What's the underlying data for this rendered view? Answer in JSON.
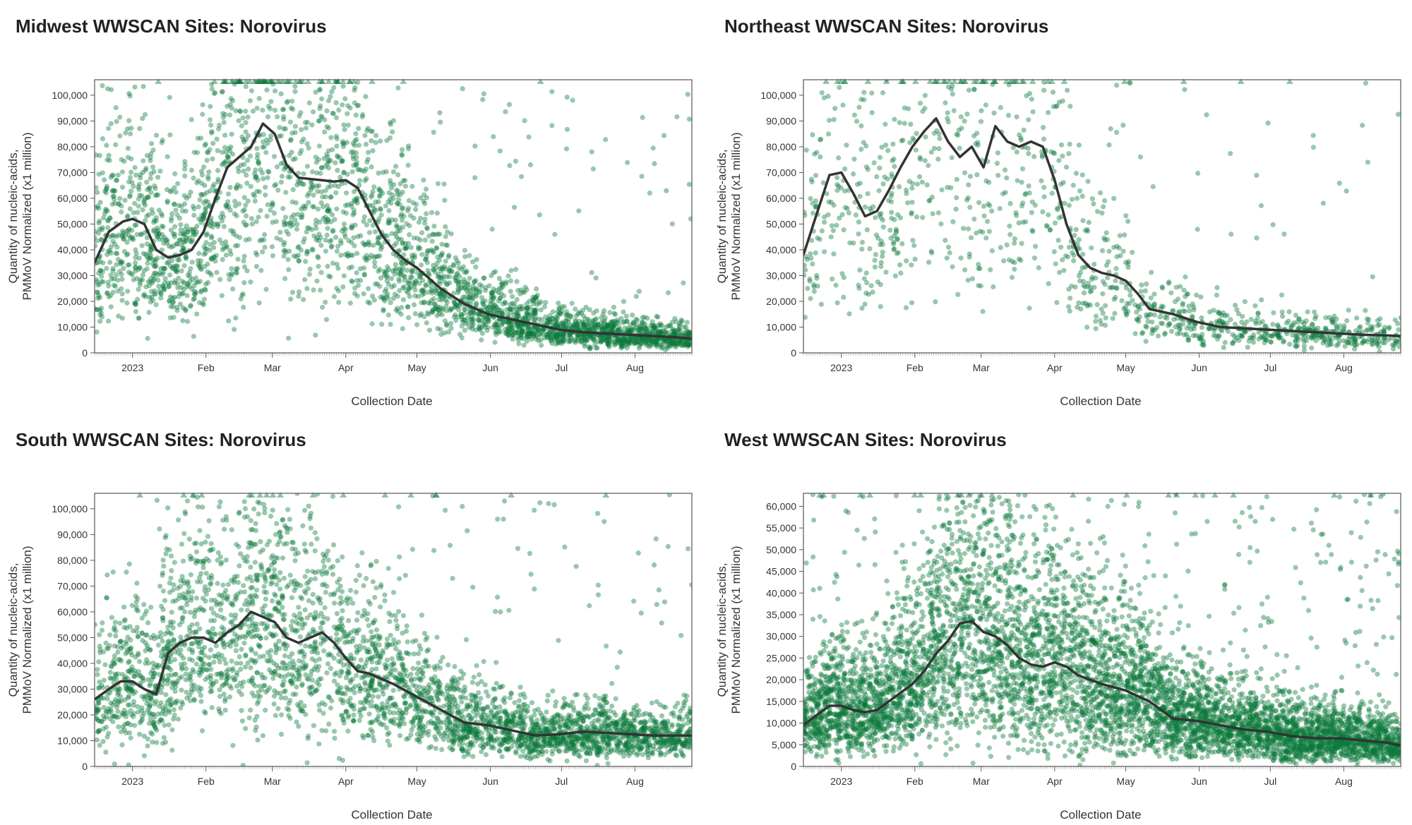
{
  "colors": {
    "points": "#0b7a3b",
    "trend": "#333333",
    "frame": "#555555"
  },
  "chart_data": [
    {
      "type": "scatter",
      "title": "Midwest WWSCAN Sites: Norovirus",
      "xlabel": "Collection Date",
      "ylabel_lines": [
        "Quantity of nucleic-acids,",
        "PMMoV Normalized (x1 million)"
      ],
      "ylim": [
        0,
        106000
      ],
      "yticks": [
        0,
        10000,
        20000,
        30000,
        40000,
        50000,
        60000,
        70000,
        80000,
        90000,
        100000
      ],
      "ytick_labels": [
        "0",
        "10,000",
        "20,000",
        "30,000",
        "40,000",
        "50,000",
        "60,000",
        "70,000",
        "80,000",
        "90,000",
        "100,000"
      ],
      "xlim": [
        -16,
        236
      ],
      "x_unit": "days since 2023-01-01",
      "xticks": [
        0,
        31,
        59,
        90,
        120,
        151,
        181,
        212
      ],
      "xtick_labels": [
        "2023",
        "Feb",
        "Mar",
        "Apr",
        "May",
        "Jun",
        "Jul",
        "Aug"
      ],
      "trend": {
        "x": [
          -16,
          -10,
          -4,
          0,
          5,
          10,
          15,
          20,
          25,
          30,
          35,
          40,
          45,
          50,
          55,
          60,
          65,
          70,
          75,
          80,
          85,
          90,
          95,
          100,
          105,
          110,
          115,
          120,
          130,
          140,
          150,
          160,
          170,
          180,
          190,
          200,
          210,
          220,
          230,
          236
        ],
        "y": [
          35000,
          47000,
          51000,
          52000,
          50000,
          40000,
          37000,
          38000,
          40000,
          47000,
          60000,
          72000,
          76000,
          80000,
          89000,
          85000,
          73000,
          68000,
          67500,
          67000,
          66500,
          67000,
          64000,
          55000,
          46000,
          40000,
          36000,
          33000,
          25000,
          19000,
          15000,
          13000,
          11000,
          9000,
          8000,
          7500,
          7000,
          6500,
          6000,
          5500
        ]
      },
      "scatter_model": {
        "n_points": 3400,
        "spread_low": 0.25,
        "spread_high": 1.9,
        "outlier_fraction": 0.05,
        "seed": 11
      },
      "above_range_markers": "triangles at top border for values above 106,000"
    },
    {
      "type": "scatter",
      "title": "Northeast WWSCAN Sites: Norovirus",
      "xlabel": "Collection Date",
      "ylabel_lines": [
        "Quantity of nucleic-acids,",
        "PMMoV Normalized (x1 million)"
      ],
      "ylim": [
        0,
        106000
      ],
      "yticks": [
        0,
        10000,
        20000,
        30000,
        40000,
        50000,
        60000,
        70000,
        80000,
        90000,
        100000
      ],
      "ytick_labels": [
        "0",
        "10,000",
        "20,000",
        "30,000",
        "40,000",
        "50,000",
        "60,000",
        "70,000",
        "80,000",
        "90,000",
        "100,000"
      ],
      "xlim": [
        -16,
        236
      ],
      "x_unit": "days since 2023-01-01",
      "xticks": [
        0,
        31,
        59,
        90,
        120,
        151,
        181,
        212
      ],
      "xtick_labels": [
        "2023",
        "Feb",
        "Mar",
        "Apr",
        "May",
        "Jun",
        "Jul",
        "Aug"
      ],
      "trend": {
        "x": [
          -16,
          -10,
          -5,
          0,
          5,
          10,
          15,
          20,
          25,
          30,
          35,
          40,
          45,
          50,
          55,
          60,
          65,
          70,
          75,
          80,
          85,
          90,
          95,
          100,
          105,
          110,
          115,
          120,
          125,
          130,
          140,
          150,
          160,
          170,
          180,
          190,
          200,
          210,
          220,
          230,
          236
        ],
        "y": [
          38000,
          55000,
          69000,
          70000,
          62000,
          53000,
          55000,
          63000,
          72000,
          80000,
          86000,
          91000,
          82000,
          76000,
          80000,
          72000,
          88000,
          82000,
          80000,
          82000,
          80000,
          67000,
          50000,
          38000,
          33000,
          31000,
          30000,
          28000,
          23000,
          17000,
          15000,
          12000,
          10000,
          9500,
          9000,
          8500,
          8000,
          7500,
          7000,
          6800,
          6500
        ]
      },
      "scatter_model": {
        "n_points": 1300,
        "spread_low": 0.2,
        "spread_high": 1.8,
        "outlier_fraction": 0.06,
        "seed": 23
      },
      "above_range_markers": "triangles at top border for values above 106,000"
    },
    {
      "type": "scatter",
      "title": "South WWSCAN Sites: Norovirus",
      "xlabel": "Collection Date",
      "ylabel_lines": [
        "Quantity of nucleic-acids,",
        "PMMoV Normalized (x1 million)"
      ],
      "ylim": [
        0,
        106000
      ],
      "yticks": [
        0,
        10000,
        20000,
        30000,
        40000,
        50000,
        60000,
        70000,
        80000,
        90000,
        100000
      ],
      "ytick_labels": [
        "0",
        "10,000",
        "20,000",
        "30,000",
        "40,000",
        "50,000",
        "60,000",
        "70,000",
        "80,000",
        "90,000",
        "100,000"
      ],
      "xlim": [
        -16,
        236
      ],
      "x_unit": "days since 2023-01-01",
      "xticks": [
        0,
        31,
        59,
        90,
        120,
        151,
        181,
        212
      ],
      "xtick_labels": [
        "2023",
        "Feb",
        "Mar",
        "Apr",
        "May",
        "Jun",
        "Jul",
        "Aug"
      ],
      "trend": {
        "x": [
          -16,
          -10,
          -5,
          0,
          5,
          10,
          15,
          20,
          25,
          30,
          35,
          40,
          45,
          50,
          55,
          60,
          65,
          70,
          75,
          80,
          85,
          90,
          95,
          100,
          105,
          110,
          120,
          130,
          140,
          150,
          160,
          170,
          180,
          190,
          200,
          210,
          220,
          230,
          236
        ],
        "y": [
          26000,
          30000,
          33000,
          33000,
          30000,
          28000,
          44000,
          48000,
          50000,
          50000,
          48000,
          52000,
          55000,
          60000,
          58000,
          56000,
          50000,
          48000,
          50000,
          52000,
          48000,
          42000,
          37000,
          36000,
          34000,
          32000,
          27000,
          22000,
          17000,
          16000,
          14000,
          12000,
          12500,
          13500,
          13000,
          12500,
          12000,
          12000,
          12000
        ]
      },
      "scatter_model": {
        "n_points": 3600,
        "spread_low": 0.25,
        "spread_high": 1.8,
        "outlier_fraction": 0.05,
        "seed": 37
      },
      "above_range_markers": "triangles at top border for values above 106,000"
    },
    {
      "type": "scatter",
      "title": "West WWSCAN Sites: Norovirus",
      "xlabel": "Collection Date",
      "ylabel_lines": [
        "Quantity of nucleic-acids,",
        "PMMoV Normalized (x1 million)"
      ],
      "ylim": [
        0,
        63000
      ],
      "yticks": [
        0,
        5000,
        10000,
        15000,
        20000,
        25000,
        30000,
        35000,
        40000,
        45000,
        50000,
        55000,
        60000
      ],
      "ytick_labels": [
        "0",
        "5,000",
        "10,000",
        "15,000",
        "20,000",
        "25,000",
        "30,000",
        "35,000",
        "40,000",
        "45,000",
        "50,000",
        "55,000",
        "60,000"
      ],
      "xlim": [
        -16,
        236
      ],
      "x_unit": "days since 2023-01-01",
      "xticks": [
        0,
        31,
        59,
        90,
        120,
        151,
        181,
        212
      ],
      "xtick_labels": [
        "2023",
        "Feb",
        "Mar",
        "Apr",
        "May",
        "Jun",
        "Jul",
        "Aug"
      ],
      "trend": {
        "x": [
          -16,
          -10,
          -5,
          0,
          5,
          10,
          15,
          20,
          25,
          30,
          35,
          40,
          45,
          50,
          55,
          60,
          65,
          70,
          75,
          80,
          85,
          90,
          95,
          100,
          110,
          120,
          130,
          140,
          150,
          160,
          170,
          180,
          190,
          200,
          210,
          220,
          230,
          236
        ],
        "y": [
          9500,
          12000,
          14000,
          14000,
          13000,
          12500,
          13000,
          15000,
          17000,
          19000,
          22000,
          26000,
          29000,
          33000,
          33500,
          31000,
          30000,
          28000,
          25000,
          23500,
          23000,
          24000,
          23000,
          21000,
          19000,
          17500,
          15000,
          11000,
          10500,
          9500,
          8500,
          8000,
          7000,
          6500,
          6500,
          6000,
          5500,
          4800
        ]
      },
      "scatter_model": {
        "n_points": 6500,
        "spread_low": 0.1,
        "spread_high": 2.1,
        "outlier_fraction": 0.07,
        "seed": 53
      },
      "above_range_markers": "triangles at top border for values above 63,000"
    }
  ]
}
